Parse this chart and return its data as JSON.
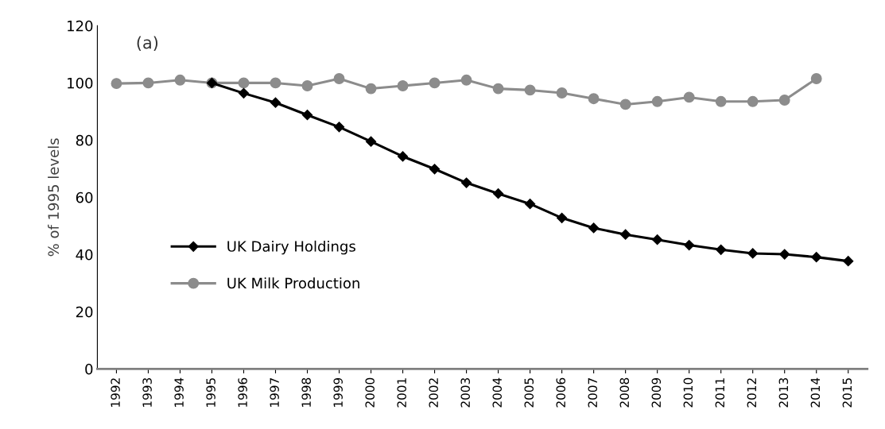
{
  "chart_data": {
    "type": "line",
    "ylabel": "% of 1995 levels",
    "annotations": [
      "(a)"
    ],
    "categories": [
      "1992",
      "1993",
      "1994",
      "1995",
      "1996",
      "1997",
      "1998",
      "1999",
      "2000",
      "2001",
      "2002",
      "2003",
      "2004",
      "2005",
      "2006",
      "2007",
      "2008",
      "2009",
      "2010",
      "2011",
      "2012",
      "2013",
      "2014",
      "2015"
    ],
    "series": [
      {
        "name": "UK Dairy Holdings",
        "color": "#000000",
        "marker": "diamond",
        "values": [
          null,
          null,
          null,
          100,
          96.4,
          93.1,
          88.8,
          84.6,
          79.5,
          74.3,
          69.9,
          65.1,
          61.3,
          57.7,
          52.8,
          49.3,
          47.0,
          45.2,
          43.3,
          41.7,
          40.4,
          40.1,
          39.1,
          37.7
        ]
      },
      {
        "name": "UK Milk Production",
        "color": "#8c8c8c",
        "marker": "circle",
        "values": [
          99.8,
          100,
          101,
          100,
          100,
          100,
          99,
          101.5,
          98,
          99,
          100,
          101,
          98,
          97.5,
          96.5,
          94.5,
          92.5,
          93.5,
          95,
          93.5,
          93.5,
          94,
          101.5,
          null
        ]
      }
    ],
    "ylim": [
      0,
      120
    ],
    "yticks": [
      0,
      20,
      40,
      60,
      80,
      100,
      120
    ],
    "grid": false,
    "legend": "left"
  }
}
